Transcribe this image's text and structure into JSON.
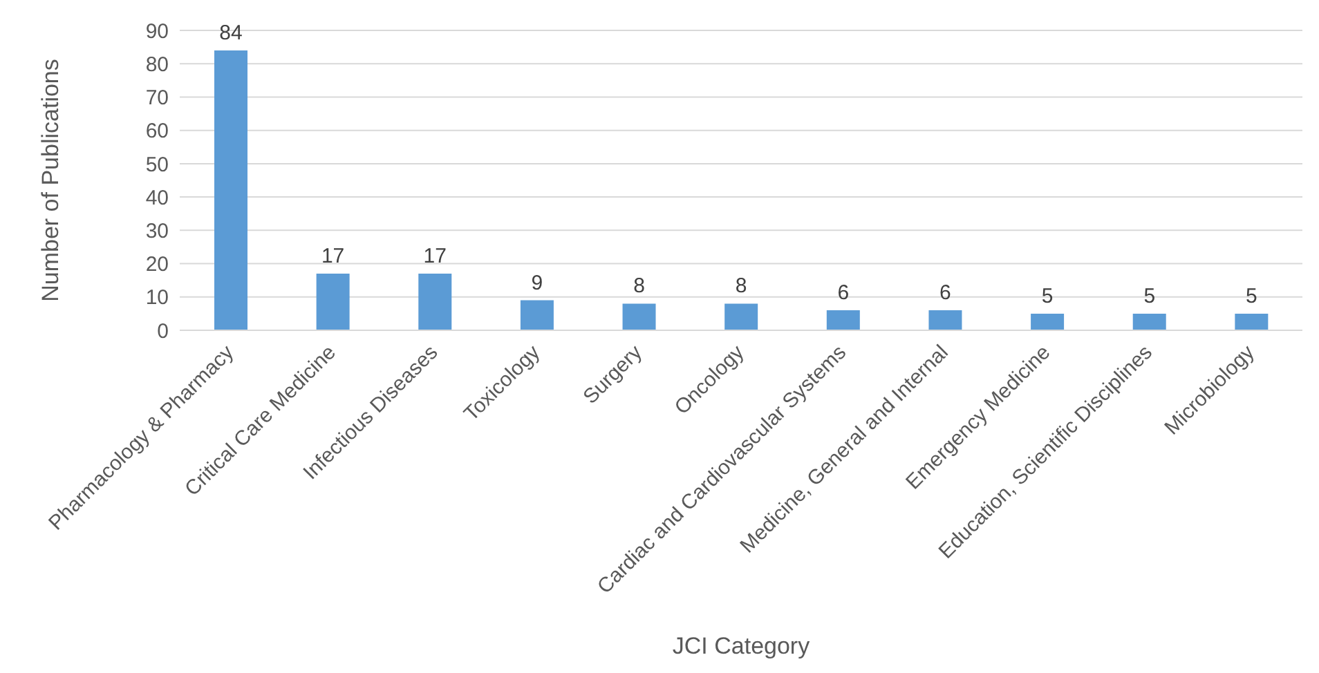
{
  "chart_data": {
    "type": "bar",
    "xlabel": "JCI Category",
    "ylabel": "Number of Publications",
    "categories": [
      "Pharmacology & Pharmacy",
      "Critical Care Medicine",
      "Infectious Diseases",
      "Toxicology",
      "Surgery",
      "Oncology",
      "Cardiac and Cardiovascular Systems",
      "Medicine, General and Internal",
      "Emergency Medicine",
      "Education, Scientific Disciplines",
      "Microbiology"
    ],
    "values": [
      84,
      17,
      17,
      9,
      8,
      8,
      6,
      6,
      5,
      5,
      5
    ],
    "color": "#5b9bd5",
    "ylim": [
      0,
      90
    ],
    "yticks": [
      0,
      10,
      20,
      30,
      40,
      50,
      60,
      70,
      80,
      90
    ],
    "grid": "y",
    "data_labels": true,
    "legend": false
  }
}
